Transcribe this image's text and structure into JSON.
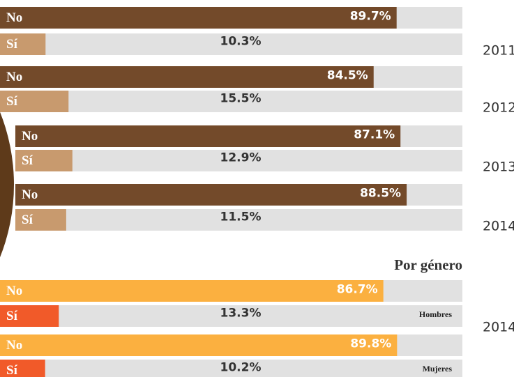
{
  "chart_data": [
    {
      "type": "bar",
      "categories": [
        "2011",
        "2012",
        "2013",
        "2014"
      ],
      "series": [
        {
          "name": "No",
          "color": "#734a2a",
          "values": [
            89.7,
            84.5,
            87.1,
            88.5
          ],
          "value_labels": [
            "89.7%",
            "84.5%",
            "87.1%",
            "88.5%"
          ]
        },
        {
          "name": "Sí",
          "color": "#c89a6e",
          "values": [
            10.3,
            15.5,
            12.9,
            11.5
          ],
          "value_labels": [
            "10.3%",
            "15.5%",
            "12.9%",
            "11.5%"
          ]
        }
      ],
      "xlim": [
        0,
        100
      ]
    },
    {
      "type": "bar",
      "title": "Por género",
      "year": "2014",
      "categories": [
        "Hombres",
        "Mujeres"
      ],
      "series": [
        {
          "name": "No",
          "color": "#fbb040",
          "values": [
            86.7,
            89.8
          ],
          "value_labels": [
            "86.7%",
            "89.8%"
          ]
        },
        {
          "name": "Sí",
          "color": "#f15a29",
          "values": [
            13.3,
            10.2
          ],
          "value_labels": [
            "13.3%",
            "10.2%"
          ]
        }
      ],
      "xlim": [
        0,
        100
      ]
    }
  ]
}
